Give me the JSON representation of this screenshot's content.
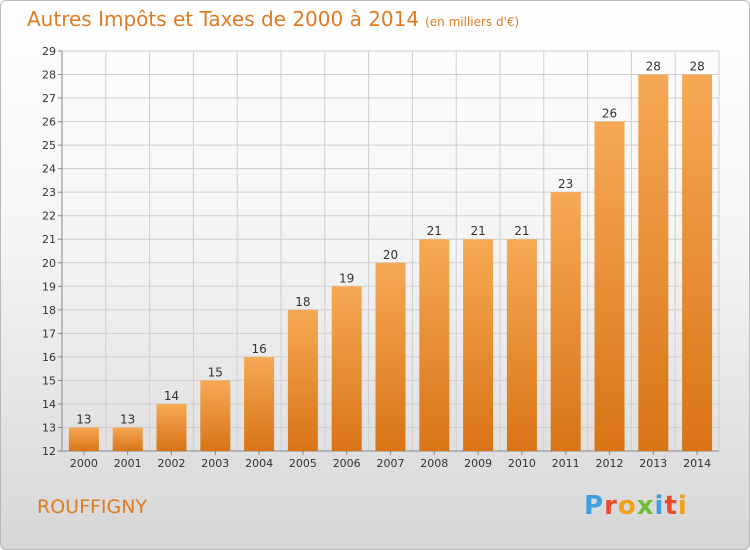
{
  "header": {
    "title": "Autres Impôts et Taxes de 2000 à 2014",
    "unit": "(en milliers d'€)"
  },
  "footer": {
    "commune": "ROUFFIGNY",
    "logo_text": "Proxiti"
  },
  "colors": {
    "accent": "#e07b22",
    "bar_top": "#f6a955",
    "bar_bottom": "#d87416",
    "grid": "#cfcfcf"
  },
  "chart_data": {
    "type": "bar",
    "title": "Autres Impôts et Taxes de 2000 à 2014",
    "xlabel": "",
    "ylabel": "",
    "categories": [
      "2000",
      "2001",
      "2002",
      "2003",
      "2004",
      "2005",
      "2006",
      "2007",
      "2008",
      "2009",
      "2010",
      "2011",
      "2012",
      "2013",
      "2014"
    ],
    "values": [
      13,
      13,
      14,
      15,
      16,
      18,
      19,
      20,
      21,
      21,
      21,
      23,
      26,
      28,
      28
    ],
    "ylim": [
      12,
      29
    ],
    "yticks": [
      12,
      13,
      14,
      15,
      16,
      17,
      18,
      19,
      20,
      21,
      22,
      23,
      24,
      25,
      26,
      27,
      28,
      29
    ],
    "grid": true,
    "legend": "none"
  }
}
